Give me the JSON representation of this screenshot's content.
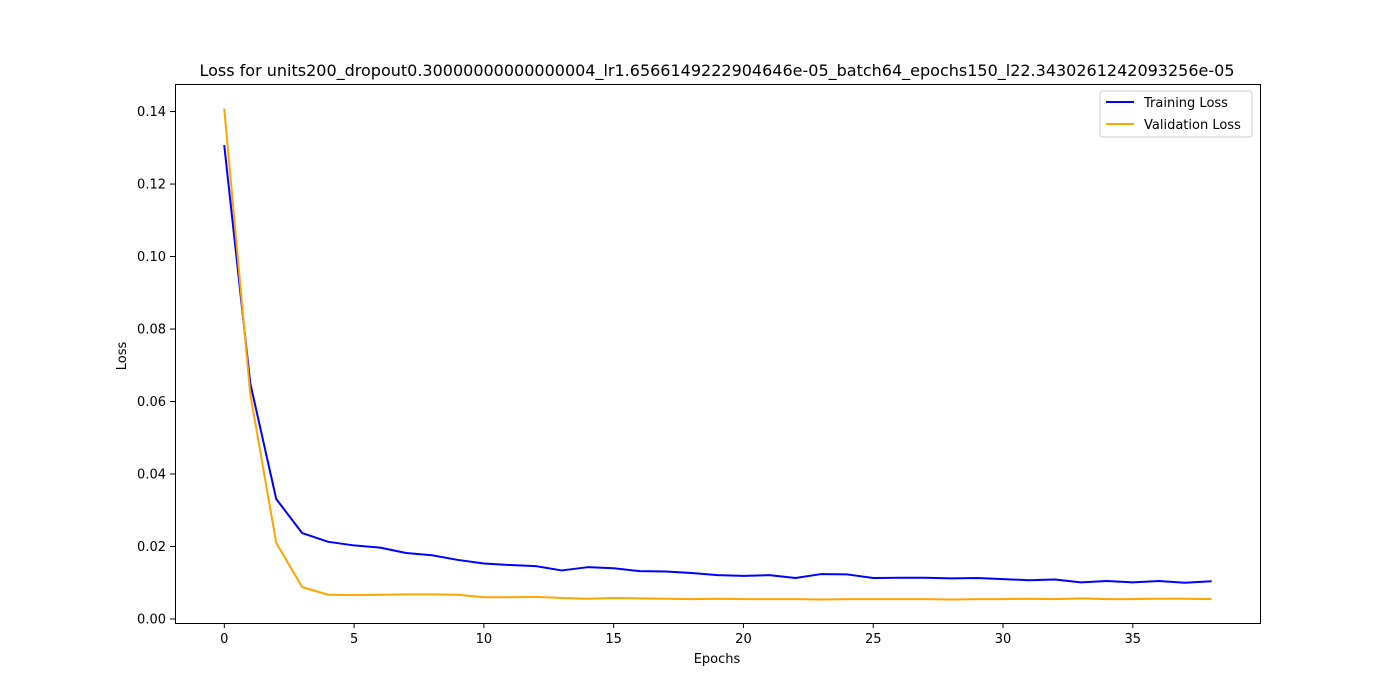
{
  "chart_data": {
    "type": "line",
    "title": "Loss for units200_dropout0.30000000000000004_lr1.6566149222904646e-05_batch64_epochs150_l22.3430261242093256e-05",
    "xlabel": "Epochs",
    "ylabel": "Loss",
    "xlim": [
      -1.9,
      39.9
    ],
    "ylim": [
      -0.0011,
      0.1476
    ],
    "xticks": [
      0,
      5,
      10,
      15,
      20,
      25,
      30,
      35
    ],
    "yticks": [
      0.0,
      0.02,
      0.04,
      0.06,
      0.08,
      0.1,
      0.12,
      0.14
    ],
    "xtick_labels": [
      "0",
      "5",
      "10",
      "15",
      "20",
      "25",
      "30",
      "35"
    ],
    "ytick_labels": [
      "0.00",
      "0.02",
      "0.04",
      "0.06",
      "0.08",
      "0.10",
      "0.12",
      "0.14"
    ],
    "grid": false,
    "legend_position": "upper-right",
    "x": [
      0,
      1,
      2,
      3,
      4,
      5,
      6,
      7,
      8,
      9,
      10,
      11,
      12,
      13,
      14,
      15,
      16,
      17,
      18,
      19,
      20,
      21,
      22,
      23,
      24,
      25,
      26,
      27,
      28,
      29,
      30,
      31,
      32,
      33,
      34,
      35,
      36,
      37,
      38
    ],
    "series": [
      {
        "name": "Training Loss",
        "color": "#0000ff",
        "values": [
          0.1305,
          0.065,
          0.0331,
          0.0237,
          0.0213,
          0.0203,
          0.0197,
          0.0182,
          0.0176,
          0.0163,
          0.0153,
          0.0149,
          0.0146,
          0.0134,
          0.0143,
          0.014,
          0.0132,
          0.0131,
          0.0127,
          0.0121,
          0.0119,
          0.0121,
          0.0113,
          0.0124,
          0.0123,
          0.0113,
          0.0114,
          0.0114,
          0.0112,
          0.0113,
          0.011,
          0.0107,
          0.0109,
          0.0101,
          0.0105,
          0.0101,
          0.0105,
          0.01,
          0.0104
        ]
      },
      {
        "name": "Validation Loss",
        "color": "#ffa500",
        "values": [
          0.1405,
          0.062,
          0.021,
          0.0088,
          0.0067,
          0.0066,
          0.0067,
          0.0068,
          0.0068,
          0.0067,
          0.006,
          0.006,
          0.0061,
          0.0058,
          0.0056,
          0.0058,
          0.0057,
          0.0056,
          0.0055,
          0.0056,
          0.0055,
          0.0055,
          0.0055,
          0.0054,
          0.0055,
          0.0055,
          0.0055,
          0.0055,
          0.0054,
          0.0055,
          0.0055,
          0.0056,
          0.0055,
          0.0057,
          0.0055,
          0.0055,
          0.0056,
          0.0056,
          0.0055
        ]
      }
    ]
  }
}
